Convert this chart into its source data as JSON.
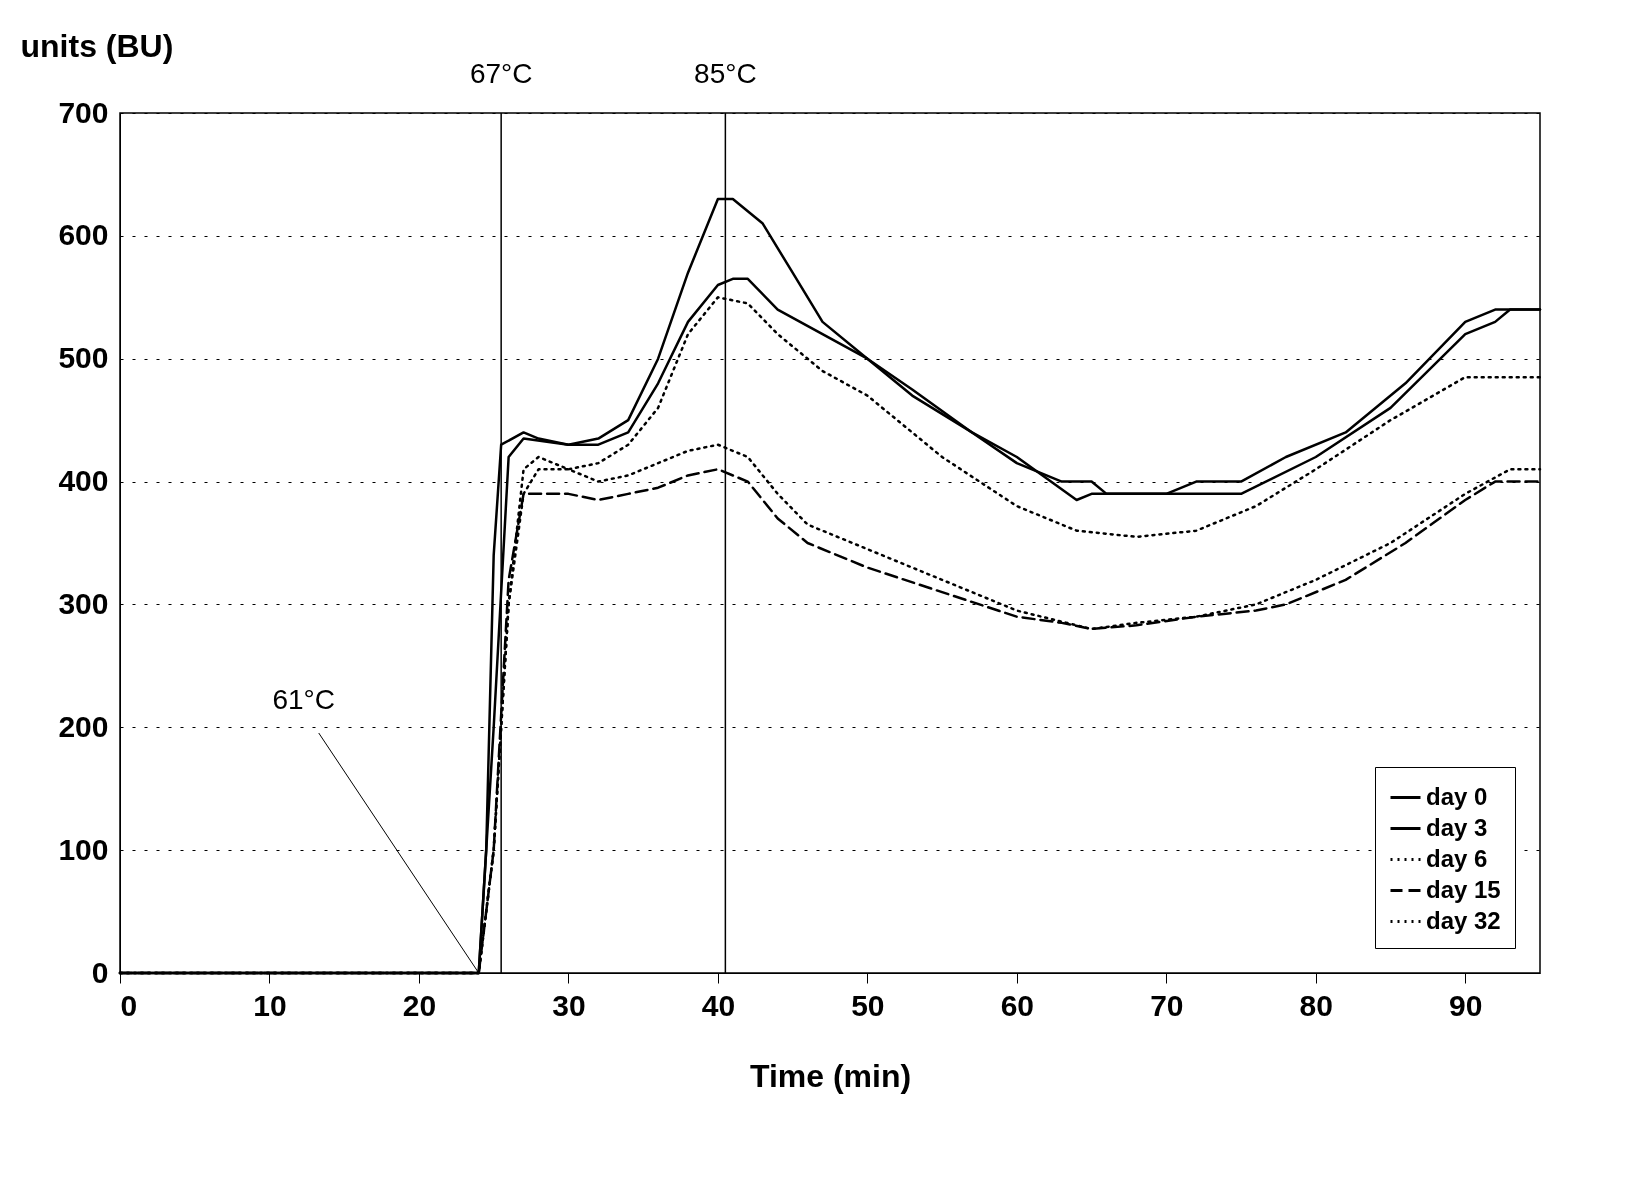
{
  "chart_data": {
    "type": "line",
    "xlabel": "Time (min)",
    "ylabel": "units (BU)",
    "xlim": [
      0,
      95
    ],
    "xticks": [
      0,
      10,
      20,
      30,
      40,
      50,
      60,
      70,
      80,
      90
    ],
    "ylim": [
      0,
      700
    ],
    "yticks": [
      0,
      100,
      200,
      300,
      400,
      500,
      600,
      700
    ],
    "grid": "y",
    "legend": "bottom right",
    "ref_lines": [
      {
        "axis": "x",
        "value": 25.5,
        "label": "67°C"
      },
      {
        "axis": "x",
        "value": 40.5,
        "label": "85°C"
      }
    ],
    "annotations": [
      {
        "text": "61°C",
        "x": 24,
        "y": 0
      }
    ],
    "series": [
      {
        "name": "day 0",
        "color": "#000000",
        "line_style": "solid",
        "x": [
          0,
          24,
          24.5,
          25,
          25.5,
          27,
          28,
          30,
          32,
          34,
          36,
          38,
          40,
          41,
          43,
          45,
          47,
          50,
          53,
          57,
          60,
          63,
          65,
          66,
          70,
          75,
          80,
          85,
          90,
          92,
          93,
          95
        ],
        "values": [
          0,
          0,
          100,
          340,
          430,
          440,
          435,
          430,
          435,
          450,
          500,
          570,
          630,
          630,
          610,
          570,
          530,
          500,
          470,
          440,
          415,
          400,
          400,
          390,
          390,
          390,
          420,
          460,
          520,
          530,
          540,
          540
        ]
      },
      {
        "name": "day 3",
        "color": "#000000",
        "line_style": "solid",
        "x": [
          0,
          24,
          25,
          26,
          27,
          30,
          32,
          34,
          36,
          38,
          40,
          41,
          42,
          44,
          47,
          50,
          53,
          57,
          60,
          64,
          65,
          70,
          72,
          75,
          78,
          82,
          86,
          90,
          92,
          95
        ],
        "values": [
          0,
          0,
          200,
          420,
          435,
          430,
          430,
          440,
          480,
          530,
          560,
          565,
          565,
          540,
          520,
          500,
          475,
          440,
          420,
          385,
          390,
          390,
          400,
          400,
          420,
          440,
          480,
          530,
          540,
          540
        ]
      },
      {
        "name": "day 6",
        "color": "#000000",
        "line_style": "dotted",
        "x": [
          0,
          24,
          25,
          26,
          27,
          28,
          30,
          32,
          34,
          36,
          38,
          40,
          42,
          44,
          47,
          50,
          55,
          60,
          64,
          68,
          72,
          76,
          80,
          85,
          90,
          95
        ],
        "values": [
          0,
          0,
          100,
          300,
          410,
          420,
          410,
          415,
          430,
          460,
          520,
          550,
          545,
          520,
          490,
          470,
          420,
          380,
          360,
          355,
          360,
          380,
          410,
          450,
          485,
          485
        ]
      },
      {
        "name": "day 15",
        "color": "#000000",
        "line_style": "dashed",
        "x": [
          0,
          24,
          25,
          26,
          27,
          30,
          32,
          34,
          36,
          38,
          40,
          42,
          44,
          46,
          50,
          55,
          60,
          63,
          65,
          68,
          72,
          76,
          78,
          82,
          86,
          90,
          92,
          95
        ],
        "values": [
          0,
          0,
          100,
          320,
          390,
          390,
          385,
          390,
          395,
          405,
          410,
          400,
          370,
          350,
          330,
          310,
          290,
          285,
          280,
          283,
          290,
          295,
          300,
          320,
          350,
          385,
          400,
          400
        ]
      },
      {
        "name": "day 32",
        "color": "#000000",
        "line_style": "dotted",
        "x": [
          0,
          24,
          25,
          26,
          27,
          28,
          30,
          32,
          34,
          36,
          38,
          40,
          42,
          44,
          46,
          50,
          55,
          60,
          65,
          68,
          72,
          76,
          80,
          85,
          90,
          93,
          95
        ],
        "values": [
          0,
          0,
          100,
          300,
          390,
          410,
          410,
          400,
          405,
          415,
          425,
          430,
          420,
          390,
          365,
          345,
          320,
          295,
          280,
          285,
          290,
          300,
          320,
          350,
          390,
          410,
          410
        ]
      }
    ]
  }
}
